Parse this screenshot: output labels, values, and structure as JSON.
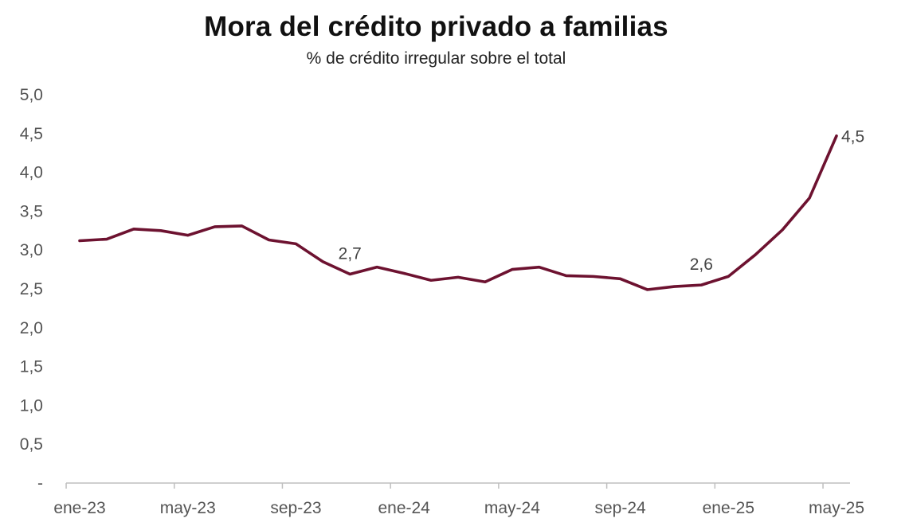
{
  "chart_data": {
    "type": "line",
    "title": "Mora del crédito privado a familias",
    "subtitle": "% de crédito irregular sobre el total",
    "xlabel": "",
    "ylabel": "",
    "ylim": [
      0,
      5
    ],
    "y_ticks": [
      0,
      0.5,
      1,
      1.5,
      2,
      2.5,
      3,
      3.5,
      4,
      4.5,
      5
    ],
    "y_tick_labels": [
      "-",
      "0,5",
      "1,0",
      "1,5",
      "2,0",
      "2,5",
      "3,0",
      "3,5",
      "4,0",
      "4,5",
      "5,0"
    ],
    "x_ticks": [
      "ene-23",
      "may-23",
      "sep-23",
      "ene-24",
      "may-24",
      "sep-24",
      "ene-25",
      "may-25"
    ],
    "x": [
      "ene-23",
      "feb-23",
      "mar-23",
      "abr-23",
      "may-23",
      "jun-23",
      "jul-23",
      "ago-23",
      "sep-23",
      "oct-23",
      "nov-23",
      "dic-23",
      "ene-24",
      "feb-24",
      "mar-24",
      "abr-24",
      "may-24",
      "jun-24",
      "jul-24",
      "ago-24",
      "sep-24",
      "oct-24",
      "nov-24",
      "dic-24",
      "ene-25",
      "feb-25",
      "mar-25",
      "abr-25",
      "may-25"
    ],
    "series": [
      {
        "color": "#6d1230",
        "values": [
          3.12,
          3.14,
          3.27,
          3.25,
          3.19,
          3.3,
          3.31,
          3.13,
          3.08,
          2.85,
          2.69,
          2.78,
          2.7,
          2.61,
          2.65,
          2.59,
          2.75,
          2.78,
          2.67,
          2.66,
          2.63,
          2.49,
          2.53,
          2.55,
          2.66,
          2.94,
          3.26,
          3.67,
          4.47
        ]
      }
    ],
    "annotations": [
      {
        "index": 10,
        "text": "2,7"
      },
      {
        "index": 23,
        "text": "2,6"
      },
      {
        "index": 28,
        "text": "4,5"
      }
    ],
    "grid": false
  }
}
